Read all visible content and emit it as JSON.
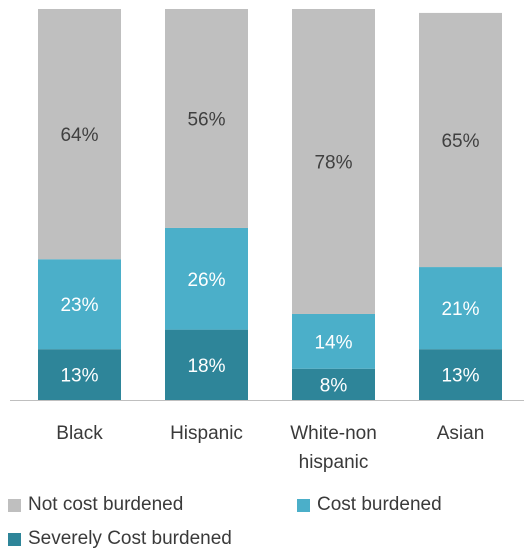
{
  "chart_data": {
    "type": "bar",
    "stacked": true,
    "categories": [
      "Black",
      "Hispanic",
      "White-non hispanic",
      "Asian"
    ],
    "category_lines": [
      [
        "Black"
      ],
      [
        "Hispanic"
      ],
      [
        "White-non",
        "hispanic"
      ],
      [
        "Asian"
      ]
    ],
    "series": [
      {
        "name": "Severely Cost burdened",
        "values": [
          13,
          18,
          8,
          13
        ],
        "labels": [
          "13%",
          "18%",
          "8%",
          "13%"
        ],
        "color": "#2e8599",
        "label_color": "#ffffff"
      },
      {
        "name": "Cost burdened",
        "values": [
          23,
          26,
          14,
          21
        ],
        "labels": [
          "23%",
          "26%",
          "14%",
          "21%"
        ],
        "color": "#4bafc9",
        "label_color": "#ffffff"
      },
      {
        "name": "Not cost burdened",
        "values": [
          64,
          56,
          78,
          65
        ],
        "labels": [
          "64%",
          "56%",
          "78%",
          "65%"
        ],
        "color": "#bfbfbf",
        "label_color": "#404040"
      }
    ],
    "ylim": [
      0,
      100
    ],
    "grid": false,
    "axis_color": "#bfbfbf",
    "legend_position": "bottom"
  },
  "legend": {
    "items": [
      {
        "label": "Not cost burdened",
        "color": "#bfbfbf"
      },
      {
        "label": "Cost burdened",
        "color": "#4bafc9"
      },
      {
        "label": "Severely Cost burdened",
        "color": "#2e8599"
      }
    ]
  }
}
